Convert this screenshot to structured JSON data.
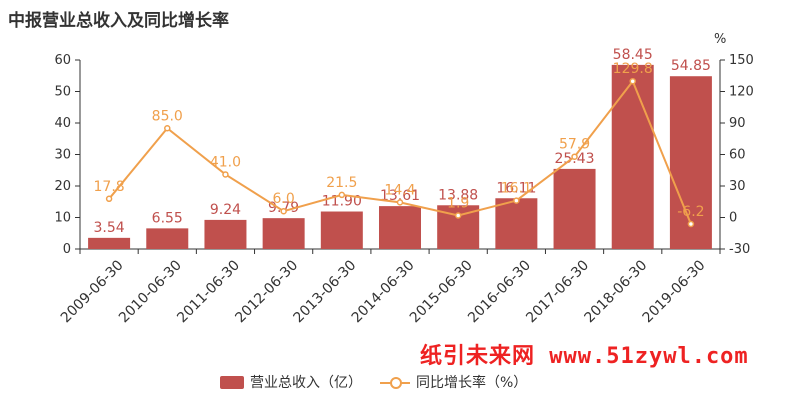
{
  "title": "中报营业总收入及同比增长率",
  "watermark": "纸引未来网 www.51zywl.com",
  "colors": {
    "bar": "#c0504d",
    "line": "#f0a04c",
    "bar_label": "#c0504d",
    "line_label": "#f0a04c"
  },
  "chart_data": {
    "type": "bar",
    "categories": [
      "2009-06-30",
      "2010-06-30",
      "2011-06-30",
      "2012-06-30",
      "2013-06-30",
      "2014-06-30",
      "2015-06-30",
      "2016-06-30",
      "2017-06-30",
      "2018-06-30",
      "2019-06-30"
    ],
    "series": [
      {
        "name": "营业总收入（亿）",
        "type": "bar",
        "axis": "left",
        "values": [
          3.54,
          6.55,
          9.24,
          9.79,
          11.9,
          13.61,
          13.88,
          16.11,
          25.43,
          58.45,
          54.85
        ],
        "labels": [
          "3.54",
          "6.55",
          "9.24",
          "9.79",
          "11.90",
          "13.61",
          "13.88",
          "16.11",
          "25.43",
          "58.45",
          "54.85"
        ]
      },
      {
        "name": "同比增长率（%）",
        "type": "line",
        "axis": "right",
        "values": [
          17.8,
          85.0,
          41.0,
          6.0,
          21.5,
          14.4,
          1.9,
          16.1,
          57.9,
          129.8,
          -6.2
        ],
        "labels": [
          "17.8",
          "85.0",
          "41.0",
          "6.0",
          "21.5",
          "14.4",
          "1.9",
          "16.1",
          "57.9",
          "129.8",
          "-6.2"
        ]
      }
    ],
    "left_axis": {
      "ylim": [
        0,
        60
      ],
      "ticks": [
        "0",
        "10",
        "20",
        "30",
        "40",
        "50",
        "60"
      ]
    },
    "right_axis": {
      "unit": "%",
      "ylim": [
        -30,
        150
      ],
      "ticks": [
        "-30",
        "0",
        "30",
        "60",
        "90",
        "120",
        "150"
      ]
    },
    "legend": "bottom-center",
    "grid": false
  }
}
